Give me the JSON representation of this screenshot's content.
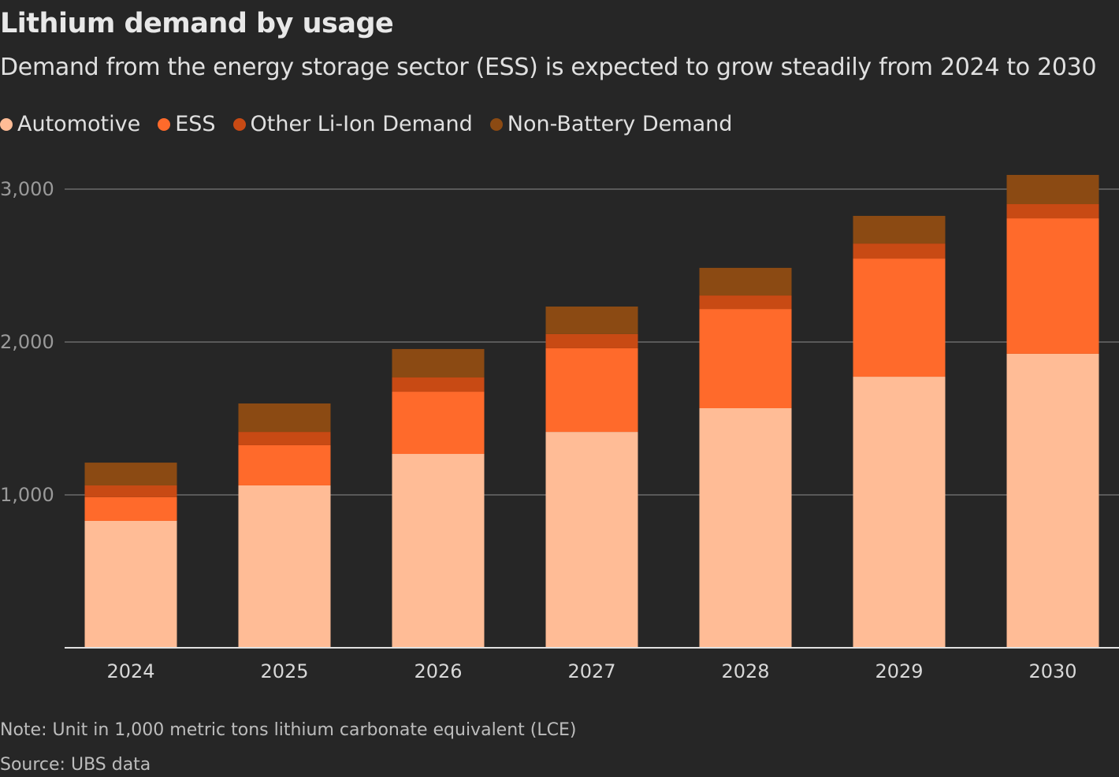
{
  "chart_data": {
    "type": "bar",
    "stacked": true,
    "title": "Lithium demand by usage",
    "subtitle": "Demand from the energy storage sector (ESS) is expected to grow steadily from 2024 to 2030",
    "categories": [
      "2024",
      "2025",
      "2026",
      "2027",
      "2028",
      "2029",
      "2030"
    ],
    "series": [
      {
        "name": "Automotive",
        "color": "#ffbc96",
        "values": [
          830,
          1062,
          1268,
          1412,
          1567,
          1773,
          1923
        ]
      },
      {
        "name": "ESS",
        "color": "#ff6a2b",
        "values": [
          155,
          263,
          407,
          547,
          649,
          773,
          886
        ]
      },
      {
        "name": "Other Li-Ion Demand",
        "color": "#c84a14",
        "values": [
          77,
          87,
          93,
          93,
          88,
          98,
          93
        ]
      },
      {
        "name": "Non-Battery Demand",
        "color": "#8b4a13",
        "values": [
          149,
          186,
          186,
          180,
          181,
          181,
          191
        ]
      }
    ],
    "yticks": [
      1000,
      2000,
      3000
    ],
    "ytick_labels": [
      "1,000",
      "2,000",
      "3,000"
    ],
    "ylim": [
      0,
      3000
    ],
    "grid": true,
    "legend_placement": "top-left",
    "note": "Note: Unit in 1,000 metric tons lithium carbonate equivalent (LCE)",
    "source": "Source: UBS data"
  },
  "colors": {
    "background": "#262626",
    "grid": "#6a6a6a",
    "axis": "#e0e0e0"
  }
}
